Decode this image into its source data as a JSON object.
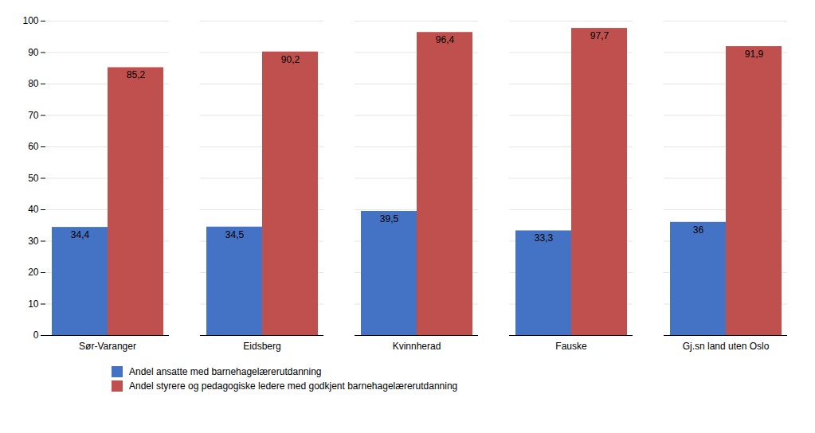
{
  "chart_data": {
    "type": "bar",
    "categories": [
      "Sør-Varanger",
      "Eidsberg",
      "Kvinnherad",
      "Fauske",
      "Gj.sn land uten Oslo"
    ],
    "series": [
      {
        "name": "Andel ansatte med barnehagelærerutdanning",
        "color": "#4472C4",
        "values": [
          34.4,
          34.5,
          39.5,
          33.3,
          36.0
        ],
        "value_labels": [
          "34,4",
          "34,5",
          "39,5",
          "33,3",
          "36"
        ]
      },
      {
        "name": "Andel styrere og pedagogiske ledere med godkjent barnehagelærerutdanning",
        "color": "#C0504D",
        "values": [
          85.2,
          90.2,
          96.4,
          97.7,
          91.9
        ],
        "value_labels": [
          "85,2",
          "90,2",
          "96,4",
          "97,7",
          "91,9"
        ]
      }
    ],
    "ylim": [
      0,
      100
    ],
    "yticks": [
      0,
      10,
      20,
      30,
      40,
      50,
      60,
      70,
      80,
      90,
      100
    ],
    "grid": true,
    "data_labels": true,
    "legend": "bottom"
  }
}
